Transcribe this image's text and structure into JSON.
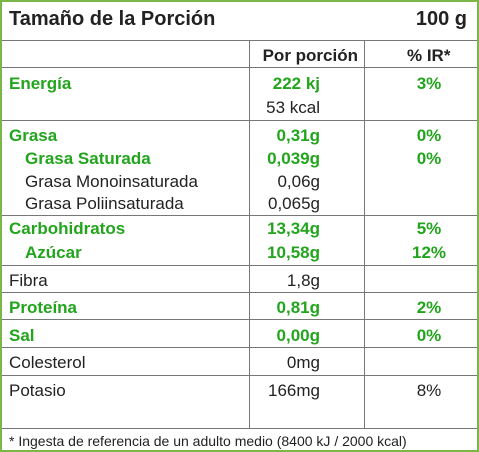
{
  "header": {
    "title": "Tamaño de la Porción",
    "amount": "100 g"
  },
  "columns": {
    "per_portion": "Por porción",
    "ir": "% IR*"
  },
  "rows": {
    "energia": {
      "label": "Energía",
      "value": "222 kj",
      "value2": "53 kcal",
      "pct": "3%"
    },
    "grasa": {
      "label": "Grasa",
      "value": "0,31g",
      "pct": "0%"
    },
    "grasa_saturada": {
      "label": "Grasa Saturada",
      "value": "0,039g",
      "pct": "0%"
    },
    "grasa_mono": {
      "label": "Grasa Monoinsaturada",
      "value": "0,06g"
    },
    "grasa_poli": {
      "label": "Grasa Poliinsaturada",
      "value": "0,065g"
    },
    "carbohidratos": {
      "label": "Carbohidratos",
      "value": "13,34g",
      "pct": "5%"
    },
    "azucar": {
      "label": "Azúcar",
      "value": "10,58g",
      "pct": "12%"
    },
    "fibra": {
      "label": "Fibra",
      "value": "1,8g"
    },
    "proteina": {
      "label": "Proteína",
      "value": "0,81g",
      "pct": "2%"
    },
    "sal": {
      "label": "Sal",
      "value": "0,00g",
      "pct": "0%"
    },
    "colesterol": {
      "label": "Colesterol",
      "value": "0mg"
    },
    "potasio": {
      "label": "Potasio",
      "value": "166mg",
      "pct": "8%"
    }
  },
  "footer": {
    "note": "* Ingesta de referencia de un adulto medio (8400 kJ / 2000 kcal)"
  },
  "colors": {
    "border": "#7ab648",
    "accent_text": "#22a51d",
    "text": "#222222",
    "rule": "#777777"
  }
}
